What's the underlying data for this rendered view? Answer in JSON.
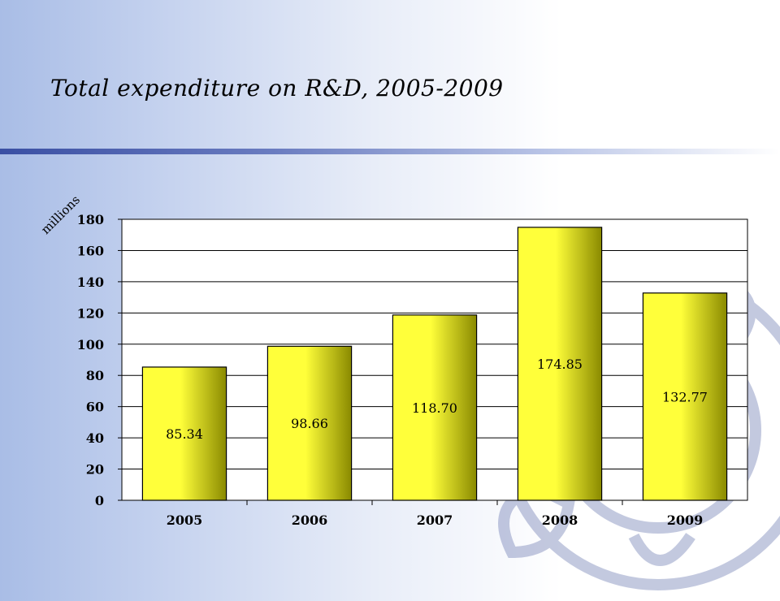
{
  "slide": {
    "title": "Total expenditure on R&D, 2005-2009"
  },
  "colors": {
    "bar_light": "#ffff3a",
    "bar_dark": "#8a8a00",
    "plot_bg": "#ffffff",
    "gridline": "#000000",
    "rule": "#3a4fa3"
  },
  "chart_data": {
    "type": "bar",
    "title": "Total expenditure on R&D, 2005-2009",
    "ylabel": "millions",
    "xlabel": "",
    "categories": [
      "2005",
      "2006",
      "2007",
      "2008",
      "2009"
    ],
    "values": [
      85.34,
      98.66,
      118.7,
      174.85,
      132.77
    ],
    "value_labels": [
      "85.34",
      "98.66",
      "118.70",
      "174.85",
      "132.77"
    ],
    "ylim": [
      0,
      180
    ],
    "yticks": [
      "0",
      "20",
      "40",
      "60",
      "80",
      "100",
      "120",
      "140",
      "160",
      "180"
    ],
    "grid": true,
    "legend": "none"
  }
}
